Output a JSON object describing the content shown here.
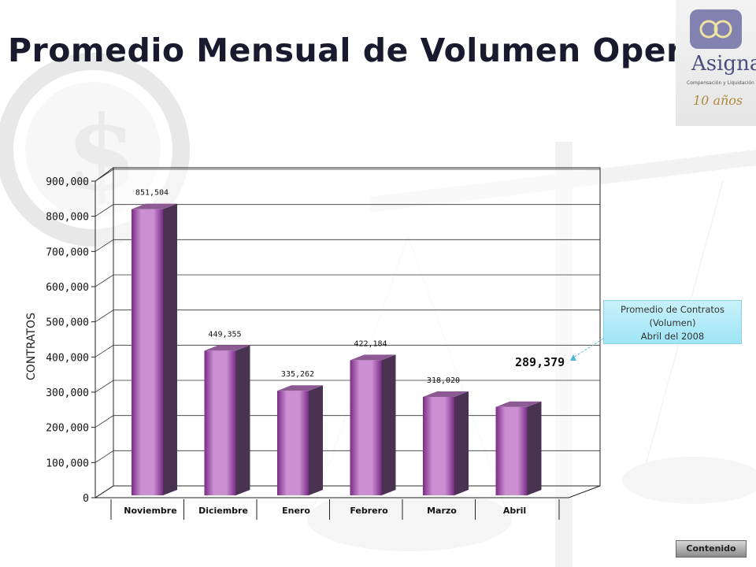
{
  "page": {
    "title": "Promedio Mensual de Volumen Operado"
  },
  "logo": {
    "name": "Asigna",
    "subtitle": "Compensación y Liquidación",
    "anniversary": "10 años"
  },
  "callout": {
    "line1": "Promedio de Contratos",
    "line2": "(Volumen)",
    "line3": "Abril del 2008",
    "value": "289,379"
  },
  "nav": {
    "contenido_label": "Contenido"
  },
  "colors": {
    "bar_front_light": "#cc8fd2",
    "bar_front_dark": "#7a2c86",
    "bar_side": "#4a3352",
    "bar_top": "#8e5a94",
    "callout_bg": "#b9ecf8"
  },
  "chart_data": {
    "type": "bar",
    "categories": [
      "Noviembre",
      "Diciembre",
      "Enero",
      "Febrero",
      "Marzo",
      "Abril"
    ],
    "values": [
      851504,
      449355,
      335262,
      422184,
      318020,
      289379
    ],
    "data_labels": [
      "851,504",
      "449,355",
      "335,262",
      "422,184",
      "318,020",
      ""
    ],
    "title": "Promedio Mensual de Volumen Operado",
    "xlabel": "",
    "ylabel": "CONTRATOS",
    "ylim": [
      0,
      900000
    ],
    "yticks": [
      0,
      100000,
      200000,
      300000,
      400000,
      500000,
      600000,
      700000,
      800000,
      900000
    ],
    "ytick_labels": [
      "0",
      "100,000",
      "200,000",
      "300,000",
      "400,000",
      "500,000",
      "600,000",
      "700,000",
      "800,000",
      "900,000"
    ],
    "grid": true,
    "style": "3d-cylinder-bars"
  }
}
